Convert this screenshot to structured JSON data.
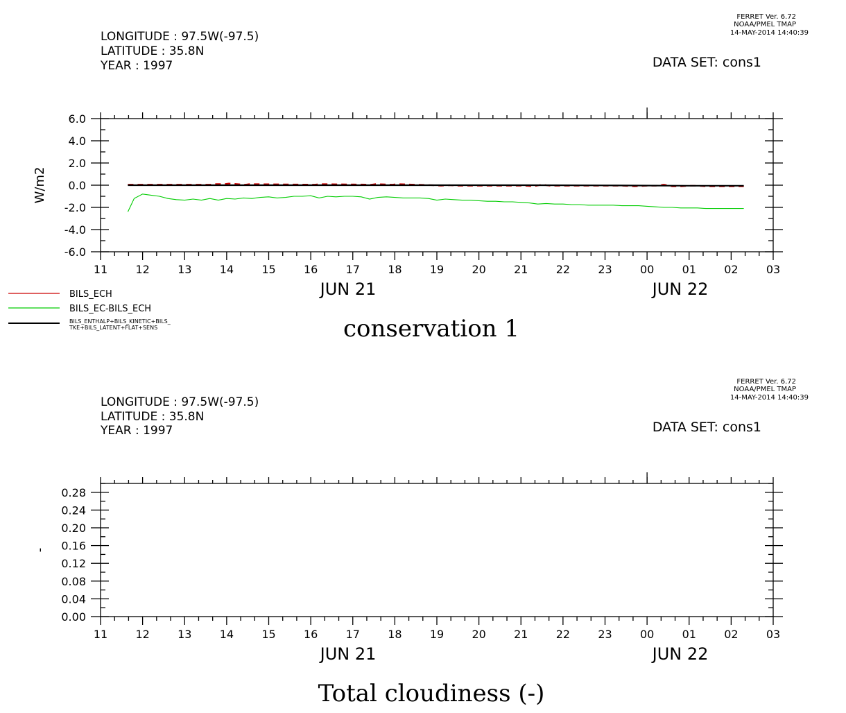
{
  "header": {
    "ferret_line1": "FERRET Ver. 6.72",
    "ferret_line2": "NOAA/PMEL TMAP",
    "timestamp": "14-MAY-2014 14:40:39",
    "longitude": "LONGITUDE : 97.5W(-97.5)",
    "latitude": "LATITUDE : 35.8N",
    "year": "YEAR : 1997",
    "dataset": "DATA SET: cons1"
  },
  "x_tick_labels": [
    "11",
    "12",
    "13",
    "14",
    "15",
    "16",
    "17",
    "18",
    "19",
    "20",
    "21",
    "22",
    "23",
    "00",
    "01",
    "02",
    "03"
  ],
  "date_labels": [
    "JUN 21",
    "JUN 22"
  ],
  "chart_data": [
    {
      "type": "line",
      "title": "conservation 1",
      "ylabel": "W/m2",
      "xlabel": "",
      "x_range_hours": [
        11,
        27
      ],
      "ylim": [
        -6.0,
        6.0
      ],
      "y_ticks": [
        "6.0",
        "4.0",
        "2.0",
        "0.0",
        "-2.0",
        "-4.0",
        "-6.0"
      ],
      "y_tick_values": [
        6,
        4,
        2,
        0,
        -2,
        -4,
        -6
      ],
      "legend_placement": "bottom-left",
      "series": [
        {
          "name": "BILS_ECH",
          "color": "#cc0000",
          "x": [
            11.65,
            13.6,
            13.75,
            13.95,
            14.05,
            14.45,
            14.55,
            16.1,
            16.2,
            17.45,
            17.55,
            17.95,
            18.05,
            18.9,
            19.1,
            19.3,
            19.5,
            19.8,
            21.1,
            21.3,
            21.5,
            21.7,
            21.9,
            22.2,
            22.5,
            22.8,
            23.1,
            23.4,
            23.7,
            24.0,
            24.2,
            24.4,
            24.6,
            24.8,
            25.0,
            25.2,
            25.4,
            25.6,
            25.8,
            26.0,
            26.15,
            26.3
          ],
          "y": [
            0.05,
            0.05,
            0.1,
            0.1,
            0.15,
            0.05,
            0.1,
            0.05,
            0.1,
            0.05,
            0.1,
            0.05,
            0.1,
            0.0,
            -0.05,
            0.0,
            -0.05,
            -0.05,
            -0.05,
            -0.1,
            0.05,
            -0.05,
            -0.05,
            -0.05,
            -0.05,
            -0.05,
            -0.05,
            -0.05,
            -0.1,
            -0.05,
            -0.05,
            0.05,
            -0.1,
            -0.1,
            -0.05,
            -0.05,
            -0.1,
            -0.1,
            -0.1,
            -0.1,
            -0.1,
            -0.1
          ]
        },
        {
          "name": "BILS_EC-BILS_ECH",
          "color": "#00cc00",
          "x": [
            11.65,
            11.8,
            12.0,
            12.2,
            12.4,
            12.6,
            12.8,
            13.0,
            13.2,
            13.4,
            13.6,
            13.8,
            14.0,
            14.2,
            14.4,
            14.6,
            14.8,
            15.0,
            15.2,
            15.4,
            15.6,
            15.8,
            16.0,
            16.2,
            16.4,
            16.6,
            16.8,
            17.0,
            17.2,
            17.4,
            17.6,
            17.8,
            18.0,
            18.2,
            18.4,
            18.6,
            18.8,
            19.0,
            19.2,
            19.4,
            19.6,
            19.8,
            20.0,
            20.2,
            20.4,
            20.6,
            20.8,
            21.0,
            21.2,
            21.4,
            21.6,
            21.8,
            22.0,
            22.2,
            22.4,
            22.6,
            22.8,
            23.0,
            23.2,
            23.4,
            23.6,
            23.8,
            24.0,
            24.2,
            24.4,
            24.6,
            24.8,
            25.0,
            25.2,
            25.4,
            25.6,
            25.8,
            26.0,
            26.2,
            26.3
          ],
          "y": [
            -2.4,
            -1.2,
            -0.8,
            -0.9,
            -1.0,
            -1.2,
            -1.3,
            -1.35,
            -1.25,
            -1.35,
            -1.2,
            -1.35,
            -1.2,
            -1.25,
            -1.15,
            -1.2,
            -1.1,
            -1.05,
            -1.15,
            -1.1,
            -1.0,
            -1.0,
            -0.95,
            -1.15,
            -1.0,
            -1.05,
            -1.0,
            -1.0,
            -1.05,
            -1.25,
            -1.1,
            -1.05,
            -1.1,
            -1.15,
            -1.15,
            -1.15,
            -1.2,
            -1.35,
            -1.25,
            -1.3,
            -1.35,
            -1.35,
            -1.4,
            -1.45,
            -1.45,
            -1.5,
            -1.5,
            -1.55,
            -1.6,
            -1.7,
            -1.65,
            -1.7,
            -1.7,
            -1.75,
            -1.75,
            -1.8,
            -1.8,
            -1.8,
            -1.8,
            -1.85,
            -1.85,
            -1.85,
            -1.9,
            -1.95,
            -2.0,
            -2.0,
            -2.05,
            -2.05,
            -2.05,
            -2.1,
            -2.1,
            -2.1,
            -2.1,
            -2.1,
            -2.1
          ]
        },
        {
          "name": "BILS_ENTHALP+BILS_KINETIC+BILS_TKE+BILS_LATENT+FLAT+SENS",
          "color": "#000000",
          "x": [
            11.65,
            13.0,
            15.0,
            17.0,
            19.0,
            21.0,
            23.0,
            25.0,
            26.3
          ],
          "y": [
            0.0,
            0.0,
            0.0,
            0.0,
            0.0,
            0.0,
            -0.02,
            -0.05,
            -0.05
          ]
        }
      ]
    },
    {
      "type": "line",
      "title": "Total cloudiness (-)",
      "ylabel": "-",
      "xlabel": "",
      "x_range_hours": [
        11,
        27
      ],
      "ylim": [
        0.0,
        0.3
      ],
      "y_ticks": [
        "0.28",
        "0.24",
        "0.20",
        "0.16",
        "0.12",
        "0.08",
        "0.04",
        "0.00"
      ],
      "y_tick_values": [
        0.28,
        0.24,
        0.2,
        0.16,
        0.12,
        0.08,
        0.04,
        0.0
      ],
      "series": []
    }
  ],
  "legend_labels": {
    "l1": "BILS_ECH",
    "l2": "BILS_EC-BILS_ECH",
    "l3a": "BILS_ENTHALP+BILS_KINETIC+BILS_",
    "l3b": "TKE+BILS_LATENT+FLAT+SENS"
  }
}
